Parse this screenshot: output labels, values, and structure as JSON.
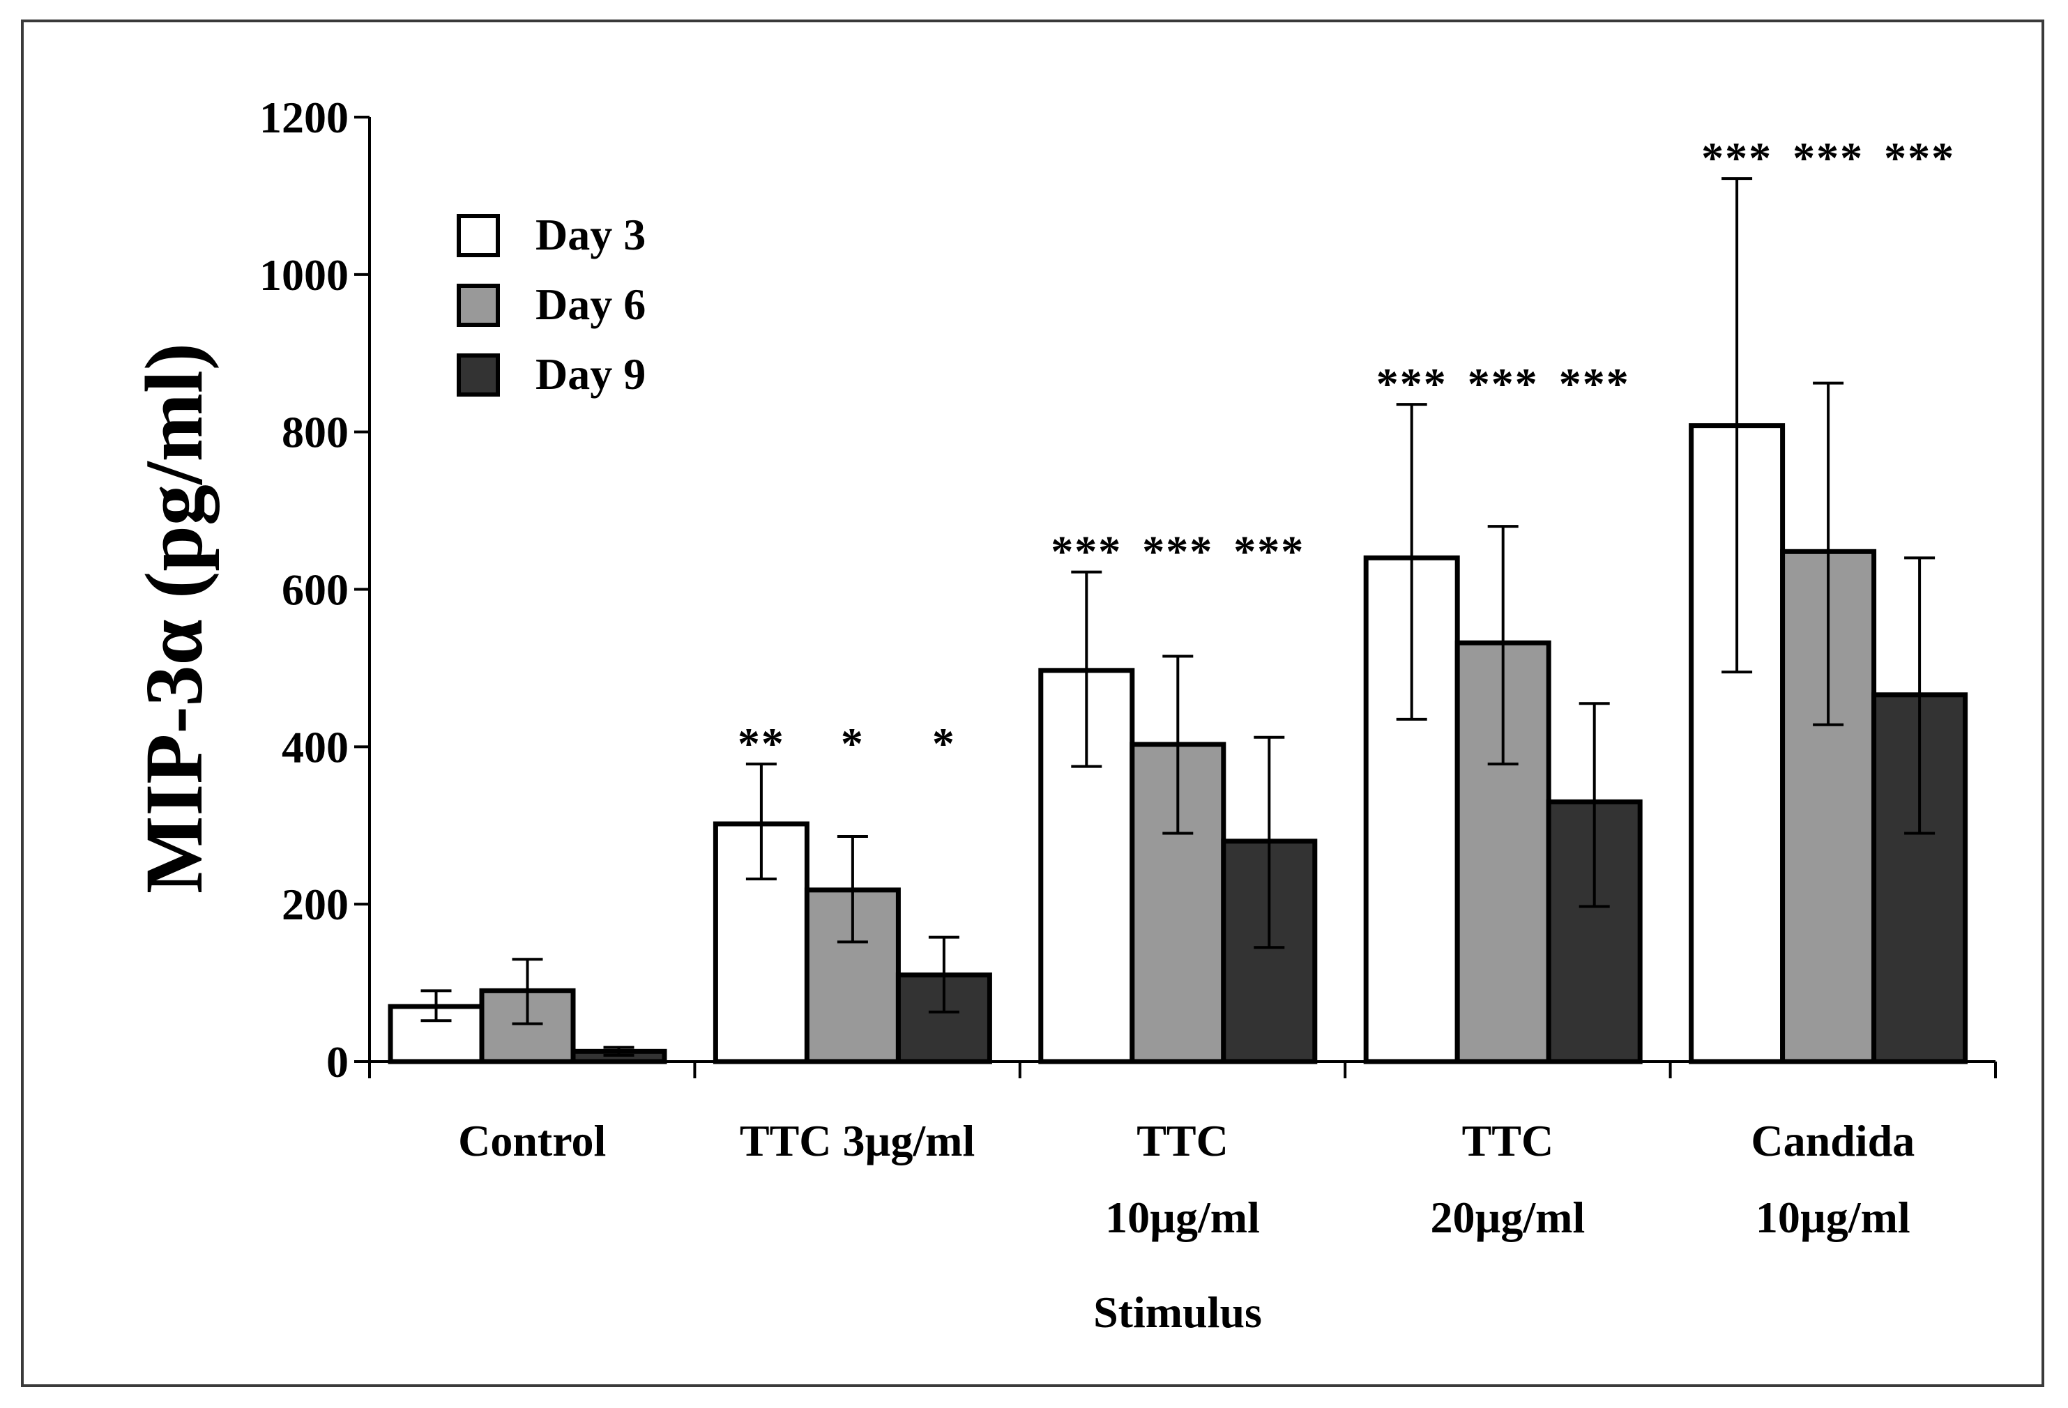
{
  "chart_data": {
    "type": "bar",
    "title": "",
    "xlabel": "Stimulus",
    "ylabel": "MIP-3α (pg/ml)",
    "ylim": [
      0,
      1200
    ],
    "yticks": [
      "0",
      "200",
      "400",
      "600",
      "800",
      "1000",
      "1200"
    ],
    "ytick_values": [
      0,
      200,
      400,
      600,
      800,
      1000,
      1200
    ],
    "categories": [
      {
        "lines": [
          "Control"
        ]
      },
      {
        "lines": [
          "TTC 3µg/ml"
        ]
      },
      {
        "lines": [
          "TTC",
          "10µg/ml"
        ]
      },
      {
        "lines": [
          "TTC",
          "20µg/ml"
        ]
      },
      {
        "lines": [
          "Candida",
          "10µg/ml"
        ]
      }
    ],
    "series": [
      {
        "name": "Day 3",
        "color": "#ffffff",
        "values": [
          70,
          302,
          497,
          640,
          808
        ],
        "err_low": [
          52,
          232,
          375,
          435,
          495
        ],
        "err_high": [
          90,
          378,
          622,
          835,
          1122
        ],
        "significance": [
          "",
          "**",
          "***",
          "***",
          "***"
        ]
      },
      {
        "name": "Day 6",
        "color": "#999999",
        "values": [
          90,
          218,
          403,
          532,
          648
        ],
        "err_low": [
          48,
          152,
          290,
          378,
          428
        ],
        "err_high": [
          130,
          286,
          515,
          680,
          862
        ],
        "significance": [
          "",
          "*",
          "***",
          "***",
          "***"
        ]
      },
      {
        "name": "Day 9",
        "color": "#333333",
        "values": [
          13,
          110,
          280,
          330,
          466
        ],
        "err_low": [
          8,
          63,
          145,
          197,
          290
        ],
        "err_high": [
          18,
          158,
          412,
          455,
          640
        ],
        "significance": [
          "",
          "*",
          "***",
          "***",
          "***"
        ]
      }
    ],
    "legend": {
      "position": "top-left",
      "entries": [
        "Day 3",
        "Day 6",
        "Day 9"
      ]
    },
    "grid": false
  }
}
